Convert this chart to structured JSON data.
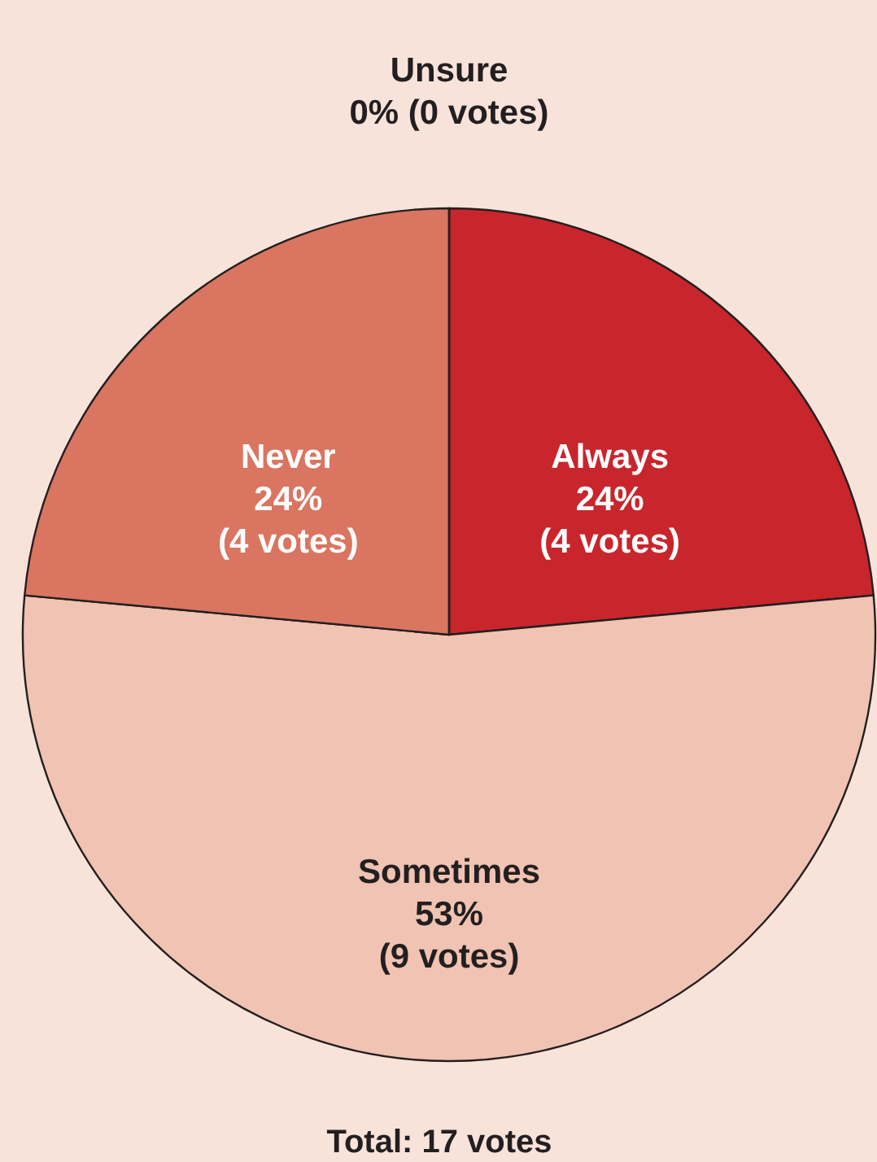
{
  "chart_data": {
    "type": "pie",
    "categories": [
      "Always",
      "Sometimes",
      "Never",
      "Unsure"
    ],
    "values": [
      4,
      9,
      4,
      0
    ],
    "value_labels": [
      "24%\n(4 votes)",
      "53%\n(9 votes)",
      "24%\n(4 votes)",
      "0% (0 votes)"
    ],
    "colors": [
      "#c9252c",
      "#f0c3b2",
      "#d97560",
      "#e8a48c"
    ],
    "annotations": [
      "Total: 17 votes"
    ]
  }
}
